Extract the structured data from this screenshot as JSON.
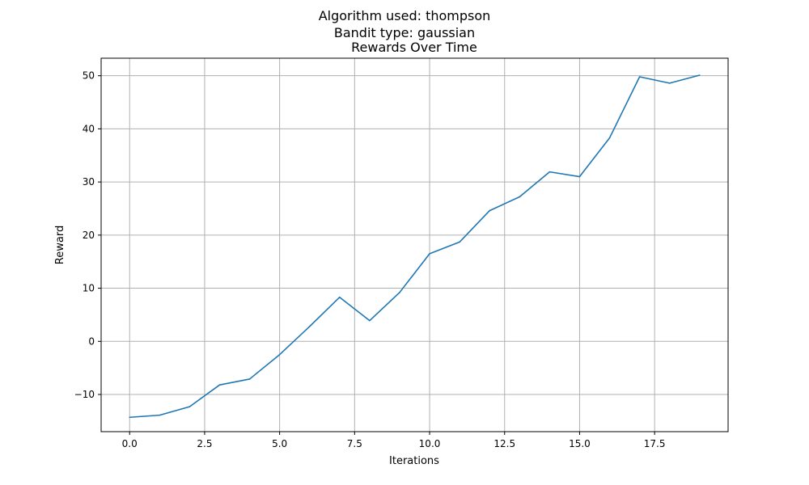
{
  "figure": {
    "suptitle_line1": "Algorithm used: thompson",
    "suptitle_line2": "Bandit type: gaussian"
  },
  "chart_data": {
    "type": "line",
    "title": "Rewards Over Time",
    "xlabel": "Iterations",
    "ylabel": "Reward",
    "xlim": [
      -0.95,
      19.95
    ],
    "ylim": [
      -17.0,
      53.3
    ],
    "xticks": [
      0.0,
      2.5,
      5.0,
      7.5,
      10.0,
      12.5,
      15.0,
      17.5
    ],
    "xtick_labels": [
      "0.0",
      "2.5",
      "5.0",
      "7.5",
      "10.0",
      "12.5",
      "15.0",
      "17.5"
    ],
    "yticks": [
      -10,
      0,
      10,
      20,
      30,
      40,
      50
    ],
    "ytick_labels": [
      "−10",
      "0",
      "10",
      "20",
      "30",
      "40",
      "50"
    ],
    "grid": true,
    "line_color": "#1f77b4",
    "x": [
      0,
      1,
      2,
      3,
      4,
      5,
      6,
      7,
      8,
      9,
      10,
      11,
      12,
      13,
      14,
      15,
      16,
      17,
      18,
      19
    ],
    "y": [
      -14.3,
      -13.9,
      -12.3,
      -8.2,
      -7.1,
      -2.5,
      2.8,
      8.3,
      3.9,
      9.2,
      16.5,
      18.7,
      24.6,
      27.2,
      31.9,
      31.0,
      38.3,
      49.8,
      48.6,
      50.1
    ]
  }
}
